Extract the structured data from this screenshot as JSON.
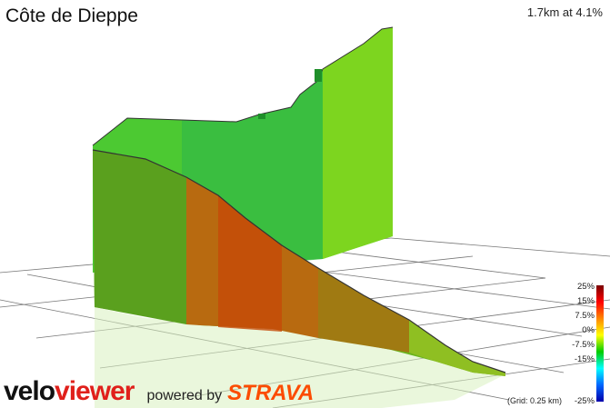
{
  "segment": {
    "name": "Côte de Dieppe",
    "summary": "1.7km at 4.1%"
  },
  "legend": {
    "labels": [
      "25%",
      "15%",
      "7.5%",
      "0%",
      "-7.5%",
      "-15%",
      "-25%"
    ],
    "grid_note": "(Grid: 0.25 km)"
  },
  "branding": {
    "velo": "velo",
    "viewer": "viewer",
    "powered_by": "powered by",
    "strava": "STRAVA"
  },
  "colors": {
    "steep": "#b85a00",
    "moderate": "#7fbf00",
    "flat": "#2fbf2f",
    "strava": "#fc4c02",
    "viewer_red": "#e0201b"
  }
}
